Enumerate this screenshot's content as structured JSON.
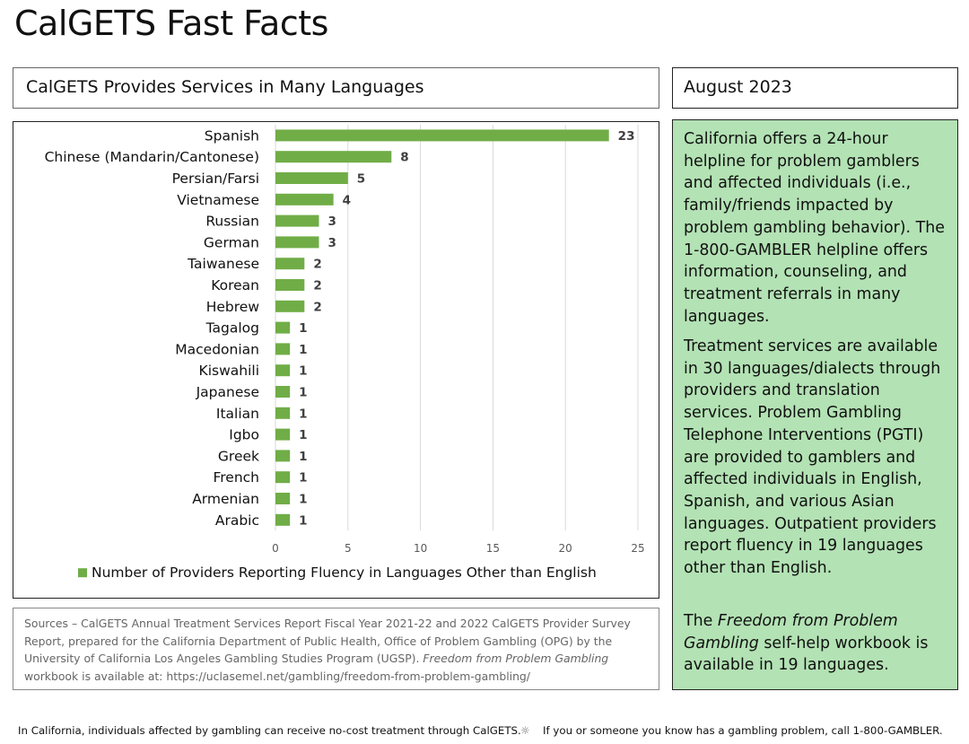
{
  "page_title": "CalGETS Fast Facts",
  "chart_header": "CalGETS Provides Services in Many Languages",
  "date_label": "August 2023",
  "facts": {
    "p1": "California offers a 24-hour helpline for problem gamblers and affected individuals (i.e., family/friends impacted by problem gambling behavior). The 1-800-GAMBLER helpline offers information, counseling, and treatment referrals in many languages.",
    "p2": "Treatment services are available in 30 languages/dialects through providers and translation services. Problem Gambling Telephone Interventions (PGTI) are provided to gamblers and affected individuals in English, Spanish, and various Asian languages. Outpatient providers report fluency in 19 languages other than English.",
    "p3_prefix": "The ",
    "p3_italic": "Freedom from Problem Gambling",
    "p3_suffix": " self-help workbook is available in 19 languages."
  },
  "sources": {
    "prefix": "Sources – CalGETS Annual Treatment Services Report Fiscal Year 2021-22 and 2022 CalGETS Provider Survey Report, prepared for the California Department of Public Health, Office of Problem Gambling (OPG) by the University of California Los Angeles Gambling Studies Program (UGSP). ",
    "italic": "Freedom from Problem Gambling",
    "suffix": " workbook is available at: https://uclasemel.net/gambling/freedom-from-problem-gambling/"
  },
  "footer": {
    "left": "In California, individuals affected by gambling can receive no-cost treatment through CalGETS.",
    "separator": "☼",
    "right": "If you or someone you know has a gambling problem, call 1-800-GAMBLER."
  },
  "colors": {
    "bar": "#70ad47",
    "gridline": "#d9d9d9",
    "facts_background": "#b3e2b4"
  },
  "chart_data": {
    "type": "bar",
    "orientation": "horizontal",
    "categories": [
      "Spanish",
      "Chinese (Mandarin/Cantonese)",
      "Persian/Farsi",
      "Vietnamese",
      "Russian",
      "German",
      "Taiwanese",
      "Korean",
      "Hebrew",
      "Tagalog",
      "Macedonian",
      "Kiswahili",
      "Japanese",
      "Italian",
      "Igbo",
      "Greek",
      "French",
      "Armenian",
      "Arabic"
    ],
    "series": [
      {
        "name": "Number of Providers Reporting Fluency in Languages Other than English",
        "values": [
          23,
          8,
          5,
          4,
          3,
          3,
          2,
          2,
          2,
          1,
          1,
          1,
          1,
          1,
          1,
          1,
          1,
          1,
          1
        ]
      }
    ],
    "xlim": [
      0,
      25
    ],
    "xticks": [
      0,
      5,
      10,
      15,
      20,
      25
    ],
    "grid": "vertical",
    "legend": "bottom",
    "data_labels": true
  }
}
